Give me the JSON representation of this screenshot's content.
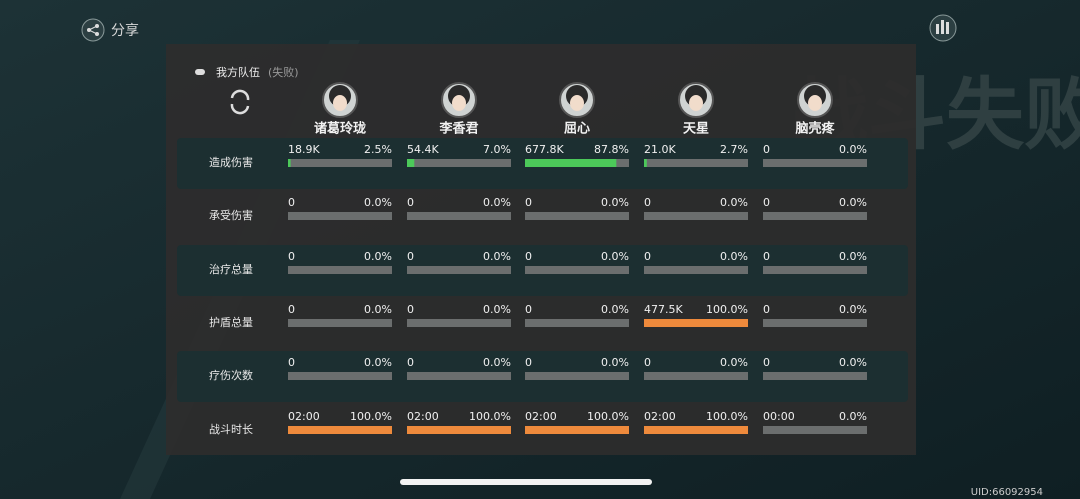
{
  "top_bar": {
    "share": "分享",
    "uid": "UID:66092954"
  },
  "background_text": "战斗失败",
  "panel": {
    "team": "我方队伍",
    "result": "(失败)"
  },
  "characters": [
    "诸葛玲珑",
    "李香君",
    "屈心",
    "天星",
    "脑壳疼"
  ],
  "stats": [
    {
      "label": "造成伤害",
      "bar_color": "#4cc95a",
      "cells": [
        {
          "value": "18.9K",
          "percent": 2.5,
          "percent_label": "2.5%"
        },
        {
          "value": "54.4K",
          "percent": 7.0,
          "percent_label": "7.0%"
        },
        {
          "value": "677.8K",
          "percent": 87.8,
          "percent_label": "87.8%"
        },
        {
          "value": "21.0K",
          "percent": 2.7,
          "percent_label": "2.7%"
        },
        {
          "value": "0",
          "percent": 0,
          "percent_label": "0.0%"
        }
      ]
    },
    {
      "label": "承受伤害",
      "bar_color": "#ee8a3c",
      "cells": [
        {
          "value": "0",
          "percent": 0,
          "percent_label": "0.0%"
        },
        {
          "value": "0",
          "percent": 0,
          "percent_label": "0.0%"
        },
        {
          "value": "0",
          "percent": 0,
          "percent_label": "0.0%"
        },
        {
          "value": "0",
          "percent": 0,
          "percent_label": "0.0%"
        },
        {
          "value": "0",
          "percent": 0,
          "percent_label": "0.0%"
        }
      ]
    },
    {
      "label": "治疗总量",
      "bar_color": "#ee8a3c",
      "cells": [
        {
          "value": "0",
          "percent": 0,
          "percent_label": "0.0%"
        },
        {
          "value": "0",
          "percent": 0,
          "percent_label": "0.0%"
        },
        {
          "value": "0",
          "percent": 0,
          "percent_label": "0.0%"
        },
        {
          "value": "0",
          "percent": 0,
          "percent_label": "0.0%"
        },
        {
          "value": "0",
          "percent": 0,
          "percent_label": "0.0%"
        }
      ]
    },
    {
      "label": "护盾总量",
      "bar_color": "#ee8a3c",
      "cells": [
        {
          "value": "0",
          "percent": 0,
          "percent_label": "0.0%"
        },
        {
          "value": "0",
          "percent": 0,
          "percent_label": "0.0%"
        },
        {
          "value": "0",
          "percent": 0,
          "percent_label": "0.0%"
        },
        {
          "value": "477.5K",
          "percent": 100.0,
          "percent_label": "100.0%"
        },
        {
          "value": "0",
          "percent": 0,
          "percent_label": "0.0%"
        }
      ]
    },
    {
      "label": "疗伤次数",
      "bar_color": "#ee8a3c",
      "cells": [
        {
          "value": "0",
          "percent": 0,
          "percent_label": "0.0%"
        },
        {
          "value": "0",
          "percent": 0,
          "percent_label": "0.0%"
        },
        {
          "value": "0",
          "percent": 0,
          "percent_label": "0.0%"
        },
        {
          "value": "0",
          "percent": 0,
          "percent_label": "0.0%"
        },
        {
          "value": "0",
          "percent": 0,
          "percent_label": "0.0%"
        }
      ]
    },
    {
      "label": "战斗时长",
      "bar_color": "#ee8a3c",
      "cells": [
        {
          "value": "02:00",
          "percent": 100.0,
          "percent_label": "100.0%"
        },
        {
          "value": "02:00",
          "percent": 100.0,
          "percent_label": "100.0%"
        },
        {
          "value": "02:00",
          "percent": 100.0,
          "percent_label": "100.0%"
        },
        {
          "value": "02:00",
          "percent": 100.0,
          "percent_label": "100.0%"
        },
        {
          "value": "00:00",
          "percent": 0,
          "percent_label": "0.0%"
        }
      ]
    }
  ]
}
